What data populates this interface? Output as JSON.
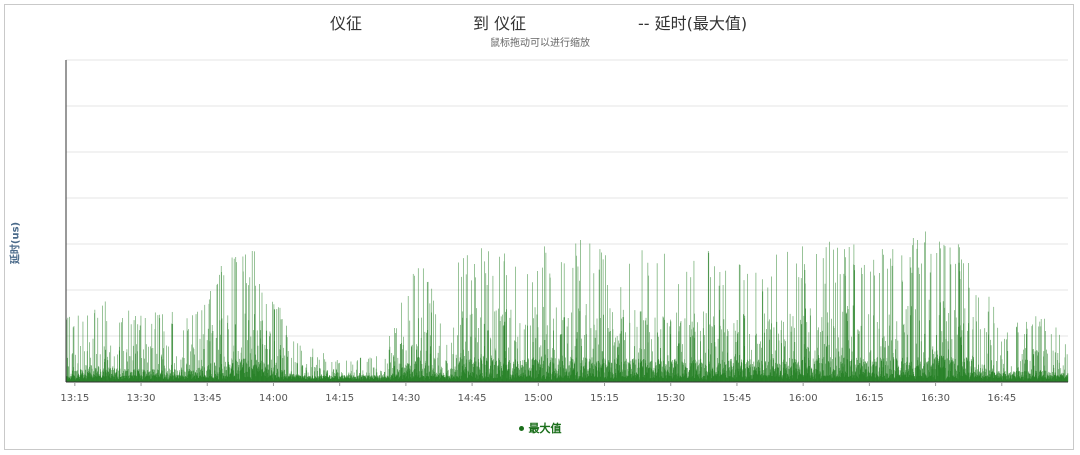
{
  "header": {
    "title_part1": "仪征",
    "title_part2": "到 仪征",
    "title_part3": "-- 延时(最大值)",
    "subtitle": "鼠标拖动可以进行缩放"
  },
  "colors": {
    "series": "#1a7a1a",
    "grid": "#e6e6e6",
    "axis": "#333333"
  },
  "chart_data": {
    "type": "area",
    "ylabel": "延时(us)",
    "xlabel": "",
    "grid": true,
    "legend": {
      "position": "bottom-center",
      "entries": [
        "最大值"
      ]
    },
    "x_ticks": [
      "13:15",
      "13:30",
      "13:45",
      "14:00",
      "14:15",
      "14:30",
      "14:45",
      "15:00",
      "15:15",
      "15:30",
      "15:45",
      "16:00",
      "16:15",
      "16:30",
      "16:45"
    ],
    "x_range": [
      "13:13",
      "17:00"
    ],
    "ylim": [
      0,
      7
    ],
    "series": [
      {
        "name": "最大值",
        "x": [
          "13:13",
          "13:20",
          "13:30",
          "13:40",
          "13:48",
          "13:52",
          "13:56",
          "14:05",
          "14:15",
          "14:25",
          "14:33",
          "14:40",
          "14:42",
          "14:50",
          "15:00",
          "15:10",
          "15:20",
          "15:30",
          "15:40",
          "15:50",
          "16:00",
          "16:10",
          "16:20",
          "16:30",
          "16:38",
          "16:45",
          "16:55",
          "17:00"
        ],
        "values": [
          1.4,
          1.8,
          1.6,
          1.5,
          2.6,
          2.8,
          2.9,
          0.9,
          0.5,
          0.6,
          3.1,
          0.6,
          3.0,
          2.9,
          3.0,
          3.1,
          2.9,
          2.8,
          2.9,
          2.7,
          3.0,
          3.1,
          3.0,
          3.4,
          2.9,
          1.2,
          1.5,
          1.1
        ]
      }
    ]
  }
}
